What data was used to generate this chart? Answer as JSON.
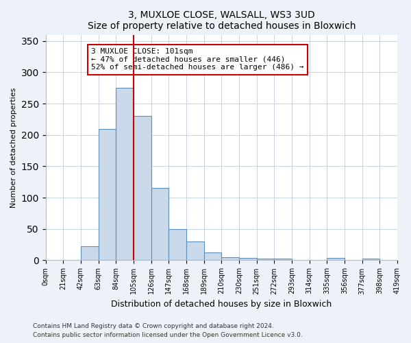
{
  "title": "3, MUXLOE CLOSE, WALSALL, WS3 3UD",
  "subtitle": "Size of property relative to detached houses in Bloxwich",
  "xlabel": "Distribution of detached houses by size in Bloxwich",
  "ylabel": "Number of detached properties",
  "bin_labels": [
    "0sqm",
    "21sqm",
    "42sqm",
    "63sqm",
    "84sqm",
    "105sqm",
    "126sqm",
    "147sqm",
    "168sqm",
    "189sqm",
    "210sqm",
    "230sqm",
    "251sqm",
    "272sqm",
    "293sqm",
    "314sqm",
    "335sqm",
    "356sqm",
    "377sqm",
    "398sqm",
    "419sqm"
  ],
  "counts": [
    0,
    0,
    22,
    210,
    275,
    230,
    115,
    50,
    30,
    12,
    5,
    4,
    3,
    3,
    0,
    0,
    4,
    0,
    3,
    0
  ],
  "bar_facecolor": "#c9d9ea",
  "bar_edgecolor": "#5b8db8",
  "vline_color": "#cc0000",
  "vline_bin_index": 5,
  "annotation_text": "3 MUXLOE CLOSE: 101sqm\n← 47% of detached houses are smaller (446)\n52% of semi-detached houses are larger (486) →",
  "annotation_box_edgecolor": "#cc0000",
  "ylim": [
    0,
    360
  ],
  "yticks": [
    0,
    50,
    100,
    150,
    200,
    250,
    300,
    350
  ],
  "footnote1": "Contains HM Land Registry data © Crown copyright and database right 2024.",
  "footnote2": "Contains public sector information licensed under the Open Government Licence v3.0.",
  "bg_color": "#edf2f8",
  "plot_bg_color": "#ffffff"
}
